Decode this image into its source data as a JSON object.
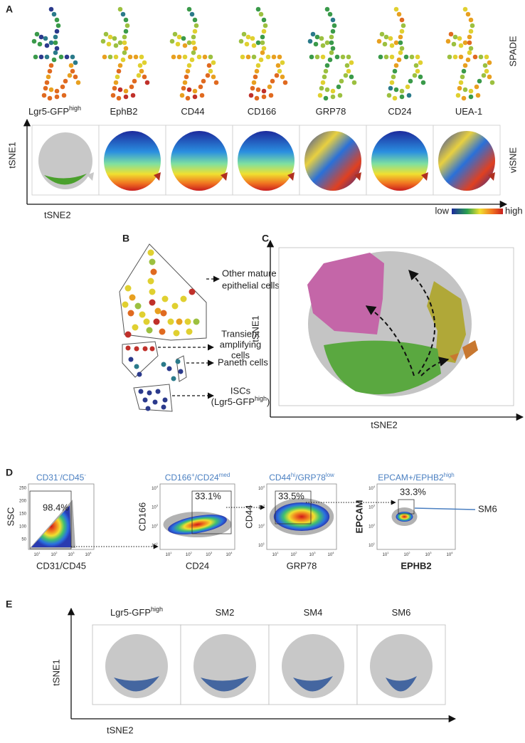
{
  "panel_a": {
    "label": "A",
    "markers": [
      {
        "base": "Lgr5-GFP",
        "sup": "high"
      },
      {
        "base": "EphB2"
      },
      {
        "base": "CD44"
      },
      {
        "base": "CD166"
      },
      {
        "base": "GRP78"
      },
      {
        "base": "CD24"
      },
      {
        "base": "UEA-1"
      }
    ],
    "spade_label": "SPADE",
    "visne_label": "viSNE",
    "y_axis": "tSNE1",
    "x_axis": "tSNE2",
    "scale_low": "low",
    "scale_high": "high"
  },
  "panel_b": {
    "label": "B",
    "other": [
      "Other mature",
      "epithelial cells"
    ],
    "transient": [
      "Transient",
      "amplifying",
      "cells"
    ],
    "paneth": "Paneth cells",
    "isc": "ISCs",
    "isc_marker": {
      "open": "(Lgr5-GFP",
      "sup": "high",
      "close": ")"
    }
  },
  "panel_c": {
    "label": "C",
    "y_axis": "tSNE1",
    "x_axis": "tSNE2"
  },
  "panel_d": {
    "label": "D",
    "log_base": "10",
    "plots": [
      {
        "title": [
          {
            "text": "CD31"
          },
          {
            "text": "-",
            "sup": true
          },
          {
            "text": "/CD45"
          },
          {
            "text": "-",
            "sup": true
          }
        ],
        "percent": "98.4%",
        "y_label": "SSC",
        "x_label": "CD31/CD45",
        "yticks": [
          250,
          200,
          150,
          100,
          50
        ],
        "xticks": [
          "1",
          "2",
          "3",
          "4"
        ]
      },
      {
        "title": [
          {
            "text": "CD166"
          },
          {
            "text": "+",
            "sup": true
          },
          {
            "text": "/CD24"
          },
          {
            "text": "med",
            "sup": true
          }
        ],
        "percent": "33.1%",
        "y_label": "CD166",
        "x_label": "CD24",
        "yticks": [
          "4",
          "3",
          "2",
          "1"
        ],
        "xticks": [
          "1",
          "2",
          "3",
          "4"
        ]
      },
      {
        "title": [
          {
            "text": "CD44"
          },
          {
            "text": "hi",
            "sup": true
          },
          {
            "text": "/GRP78"
          },
          {
            "text": "low",
            "sup": true
          }
        ],
        "percent": "33.5%",
        "y_label": "CD44",
        "x_label": "GRP78",
        "yticks": [
          "4",
          "3",
          "2",
          "1"
        ],
        "xticks": [
          "1",
          "2",
          "3",
          "4"
        ]
      },
      {
        "title": [
          {
            "text": "EPCAM+/EPHB2"
          },
          {
            "text": "high",
            "sup": true
          }
        ],
        "percent": "33.3%",
        "y_label": "EPCAM",
        "x_label": "EPHB2",
        "yticks": [
          "4",
          "3",
          "2",
          "1"
        ],
        "xticks": [
          "1",
          "2",
          "3",
          "4"
        ]
      }
    ],
    "gate_label": "SM6"
  },
  "panel_e": {
    "label": "E",
    "columns": [
      {
        "base": "Lgr5-GFP",
        "sup": "high"
      },
      {
        "base": "SM2"
      },
      {
        "base": "SM4"
      },
      {
        "base": "SM6"
      }
    ],
    "y_axis": "tSNE1",
    "x_axis": "tSNE2"
  }
}
